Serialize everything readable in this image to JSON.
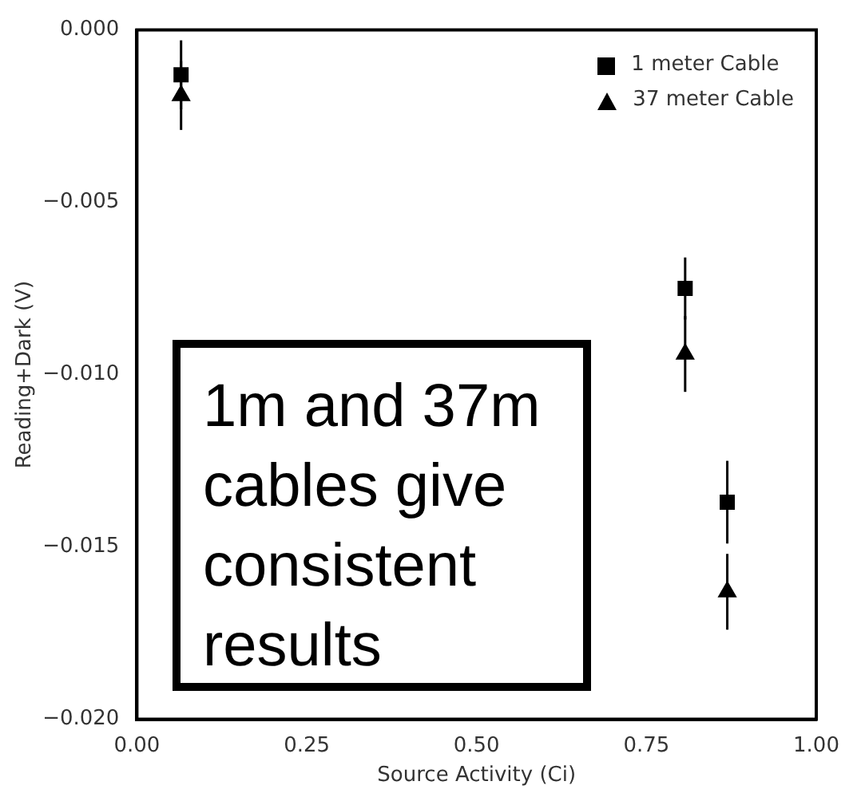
{
  "chart_data": {
    "type": "scatter",
    "xlabel": "Source Activity (Ci)",
    "ylabel": "Reading+Dark (V)",
    "xlim": [
      0,
      1
    ],
    "xticks": [
      {
        "value": 0,
        "label": "0.00"
      },
      {
        "value": 0.25,
        "label": "0.25"
      },
      {
        "value": 0.5,
        "label": "0.50"
      },
      {
        "value": 0.75,
        "label": "0.75"
      },
      {
        "value": 1,
        "label": "1.00"
      }
    ],
    "ylim": [
      -0.02,
      0
    ],
    "yticks": [
      {
        "value": -0.02,
        "label": "−0.020"
      },
      {
        "value": -0.015,
        "label": "−0.015"
      },
      {
        "value": -0.01,
        "label": "−0.010"
      },
      {
        "value": -0.005,
        "label": "−0.005"
      },
      {
        "value": 0,
        "label": "0.000"
      }
    ],
    "grid": false,
    "legend": "top right",
    "series": [
      {
        "name": "1 meter Cable",
        "color": "#000000",
        "marker": "square",
        "x": [
          0.065,
          0.807,
          0.869
        ],
        "values": [
          -0.0013,
          -0.0075,
          -0.0137
        ],
        "errors": [
          0.001,
          0.0009,
          0.0012
        ]
      },
      {
        "name": "37 meter Cable",
        "color": "#000000",
        "marker": "triangle",
        "x": [
          0.065,
          0.807,
          0.869
        ],
        "values": [
          -0.0019,
          -0.0094,
          -0.0163
        ],
        "errors": [
          0.001,
          0.0011,
          0.0011
        ]
      }
    ],
    "annotations": [
      "1m and 37m cables give consistent results"
    ]
  }
}
